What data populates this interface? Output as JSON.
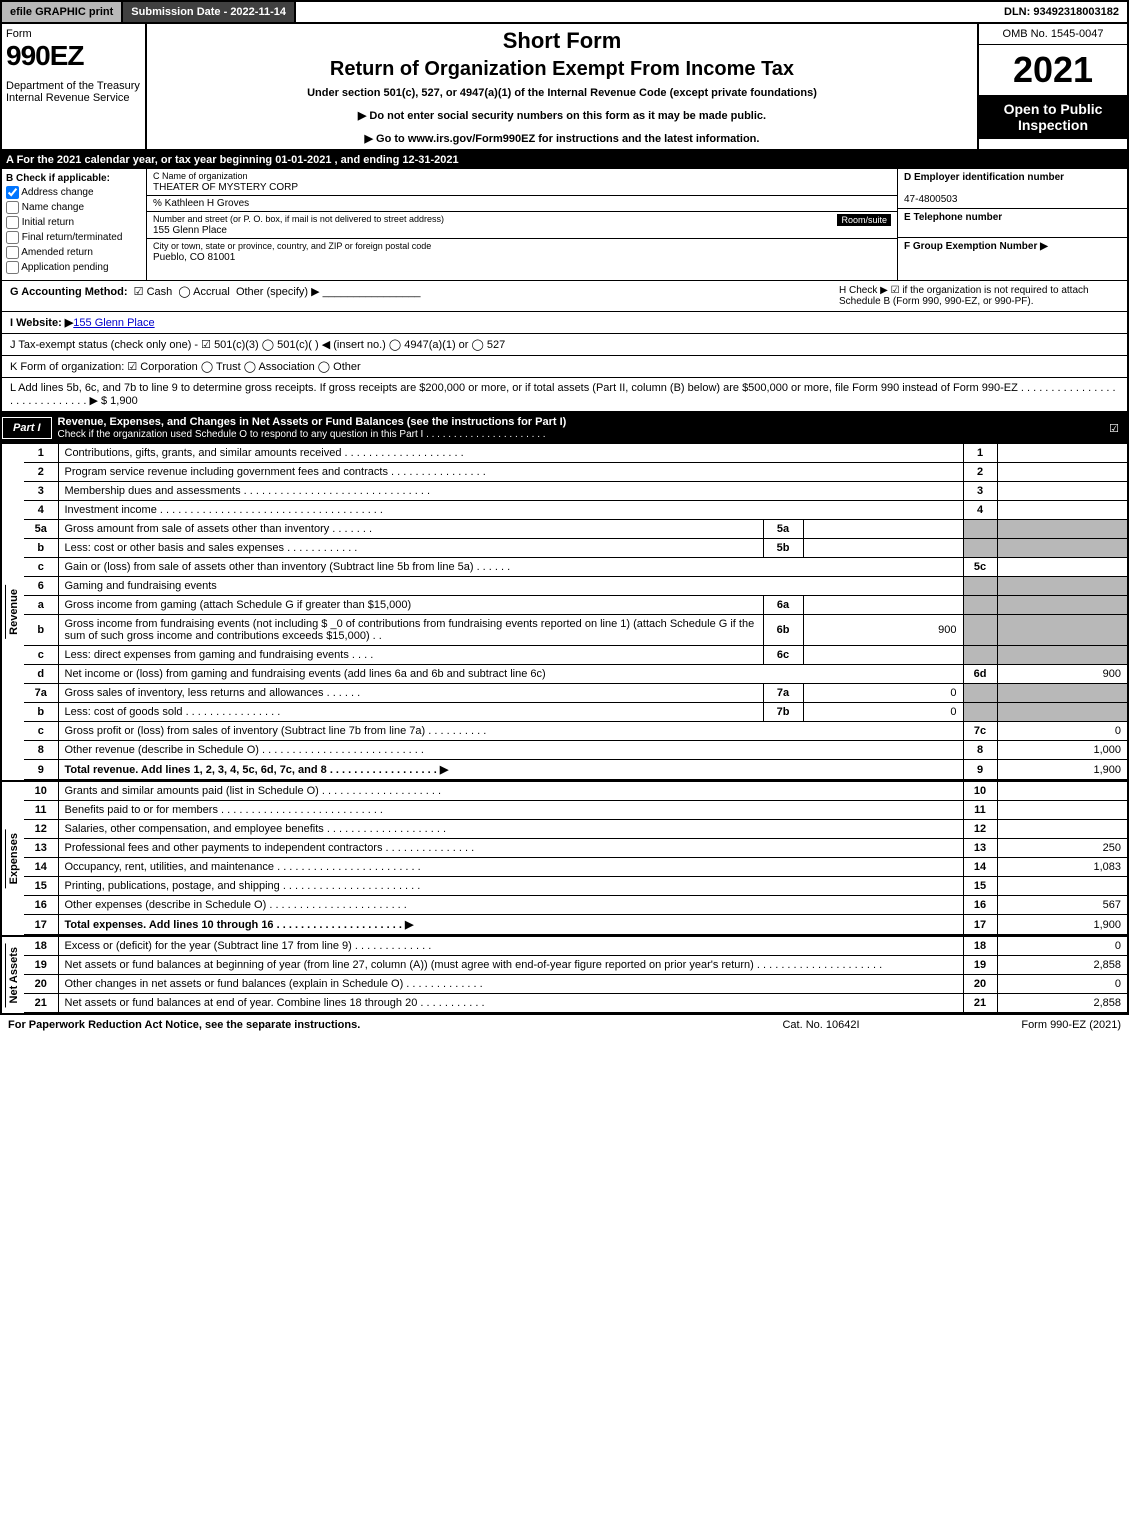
{
  "top_bar": {
    "efile": "efile GRAPHIC print",
    "submission": "Submission Date - 2022-11-14",
    "dln": "DLN: 93492318003182"
  },
  "header": {
    "form_label": "Form",
    "form_number": "990EZ",
    "dept": "Department of the Treasury\nInternal Revenue Service",
    "title1": "Short Form",
    "title2": "Return of Organization Exempt From Income Tax",
    "subtitle": "Under section 501(c), 527, or 4947(a)(1) of the Internal Revenue Code (except private foundations)",
    "note1": "▶ Do not enter social security numbers on this form as it may be made public.",
    "note2": "▶ Go to www.irs.gov/Form990EZ for instructions and the latest information.",
    "omb": "OMB No. 1545-0047",
    "year": "2021",
    "open": "Open to Public Inspection"
  },
  "row_a": "A  For the 2021 calendar year, or tax year beginning 01-01-2021 , and ending 12-31-2021",
  "section_b": {
    "header": "B  Check if applicable:",
    "items": [
      {
        "label": "Address change",
        "checked": true
      },
      {
        "label": "Name change",
        "checked": false
      },
      {
        "label": "Initial return",
        "checked": false
      },
      {
        "label": "Final return/terminated",
        "checked": false
      },
      {
        "label": "Amended return",
        "checked": false
      },
      {
        "label": "Application pending",
        "checked": false
      }
    ]
  },
  "section_c": {
    "c_label": "C Name of organization",
    "org_name": "THEATER OF MYSTERY CORP",
    "care_of": "% Kathleen H Groves",
    "addr_label": "Number and street (or P. O. box, if mail is not delivered to street address)",
    "room_label": "Room/suite",
    "address": "155 Glenn Place",
    "city_label": "City or town, state or province, country, and ZIP or foreign postal code",
    "city": "Pueblo, CO  81001"
  },
  "section_d": {
    "d_label": "D Employer identification number",
    "ein": "47-4800503",
    "e_label": "E Telephone number",
    "f_label": "F Group Exemption Number   ▶"
  },
  "line_g": {
    "g_label": "G Accounting Method:",
    "cash": "Cash",
    "accrual": "Accrual",
    "other": "Other (specify) ▶",
    "h_text": "H  Check ▶ ☑ if the organization is not required to attach Schedule B (Form 990, 990-EZ, or 990-PF)."
  },
  "line_i": {
    "label": "I Website: ▶",
    "value": "155 Glenn Place"
  },
  "line_j": "J Tax-exempt status (check only one) - ☑ 501(c)(3)  ◯ 501(c)(  ) ◀ (insert no.)  ◯ 4947(a)(1) or  ◯ 527",
  "line_k": "K Form of organization:  ☑ Corporation  ◯ Trust  ◯ Association  ◯ Other",
  "line_l": {
    "text": "L Add lines 5b, 6c, and 7b to line 9 to determine gross receipts. If gross receipts are $200,000 or more, or if total assets (Part II, column (B) below) are $500,000 or more, file Form 990 instead of Form 990-EZ . . . . . . . . . . . . . . . . . . . . . . . . . . . . .  ▶",
    "amount": "$ 1,900"
  },
  "part1": {
    "label": "Part I",
    "title": "Revenue, Expenses, and Changes in Net Assets or Fund Balances (see the instructions for Part I)",
    "check_text": "Check if the organization used Schedule O to respond to any question in this Part I . . . . . . . . . . . . . . . . . . . . . ."
  },
  "revenue_label": "Revenue",
  "expenses_label": "Expenses",
  "netassets_label": "Net Assets",
  "lines": {
    "l1": {
      "num": "1",
      "desc": "Contributions, gifts, grants, and similar amounts received . . . . . . . . . . . . . . . . . . . .",
      "rnum": "1",
      "rval": ""
    },
    "l2": {
      "num": "2",
      "desc": "Program service revenue including government fees and contracts . . . . . . . . . . . . . . . .",
      "rnum": "2",
      "rval": ""
    },
    "l3": {
      "num": "3",
      "desc": "Membership dues and assessments . . . . . . . . . . . . . . . . . . . . . . . . . . . . . . .",
      "rnum": "3",
      "rval": ""
    },
    "l4": {
      "num": "4",
      "desc": "Investment income . . . . . . . . . . . . . . . . . . . . . . . . . . . . . . . . . . . . .",
      "rnum": "4",
      "rval": ""
    },
    "l5a": {
      "num": "5a",
      "desc": "Gross amount from sale of assets other than inventory . . . . . . .",
      "snum": "5a",
      "sval": ""
    },
    "l5b": {
      "num": "b",
      "desc": "Less: cost or other basis and sales expenses . . . . . . . . . . . .",
      "snum": "5b",
      "sval": ""
    },
    "l5c": {
      "num": "c",
      "desc": "Gain or (loss) from sale of assets other than inventory (Subtract line 5b from line 5a) . . . . . .",
      "rnum": "5c",
      "rval": ""
    },
    "l6": {
      "num": "6",
      "desc": "Gaming and fundraising events"
    },
    "l6a": {
      "num": "a",
      "desc": "Gross income from gaming (attach Schedule G if greater than $15,000)",
      "snum": "6a",
      "sval": ""
    },
    "l6b": {
      "num": "b",
      "desc": "Gross income from fundraising events (not including $ _0   of contributions from fundraising events reported on line 1) (attach Schedule G if the sum of such gross income and contributions exceeds $15,000)  . .",
      "snum": "6b",
      "sval": "900"
    },
    "l6c": {
      "num": "c",
      "desc": "Less: direct expenses from gaming and fundraising events  . . . .",
      "snum": "6c",
      "sval": ""
    },
    "l6d": {
      "num": "d",
      "desc": "Net income or (loss) from gaming and fundraising events (add lines 6a and 6b and subtract line 6c)",
      "rnum": "6d",
      "rval": "900"
    },
    "l7a": {
      "num": "7a",
      "desc": "Gross sales of inventory, less returns and allowances . . . . . .",
      "snum": "7a",
      "sval": "0"
    },
    "l7b": {
      "num": "b",
      "desc": "Less: cost of goods sold    . . . . . . . . . . . . . . . .",
      "snum": "7b",
      "sval": "0"
    },
    "l7c": {
      "num": "c",
      "desc": "Gross profit or (loss) from sales of inventory (Subtract line 7b from line 7a) . . . . . . . . . .",
      "rnum": "7c",
      "rval": "0"
    },
    "l8": {
      "num": "8",
      "desc": "Other revenue (describe in Schedule O) . . . . . . . . . . . . . . . . . . . . . . . . . . .",
      "rnum": "8",
      "rval": "1,000"
    },
    "l9": {
      "num": "9",
      "desc": "Total revenue. Add lines 1, 2, 3, 4, 5c, 6d, 7c, and 8  . . . . . . . . . . . . . . . . . .  ▶",
      "rnum": "9",
      "rval": "1,900"
    },
    "l10": {
      "num": "10",
      "desc": "Grants and similar amounts paid (list in Schedule O) . . . . . . . . . . . . . . . . . . . .",
      "rnum": "10",
      "rval": ""
    },
    "l11": {
      "num": "11",
      "desc": "Benefits paid to or for members   . . . . . . . . . . . . . . . . . . . . . . . . . . .",
      "rnum": "11",
      "rval": ""
    },
    "l12": {
      "num": "12",
      "desc": "Salaries, other compensation, and employee benefits . . . . . . . . . . . . . . . . . . . .",
      "rnum": "12",
      "rval": ""
    },
    "l13": {
      "num": "13",
      "desc": "Professional fees and other payments to independent contractors . . . . . . . . . . . . . . .",
      "rnum": "13",
      "rval": "250"
    },
    "l14": {
      "num": "14",
      "desc": "Occupancy, rent, utilities, and maintenance . . . . . . . . . . . . . . . . . . . . . . . .",
      "rnum": "14",
      "rval": "1,083"
    },
    "l15": {
      "num": "15",
      "desc": "Printing, publications, postage, and shipping . . . . . . . . . . . . . . . . . . . . . . .",
      "rnum": "15",
      "rval": ""
    },
    "l16": {
      "num": "16",
      "desc": "Other expenses (describe in Schedule O)   . . . . . . . . . . . . . . . . . . . . . . .",
      "rnum": "16",
      "rval": "567"
    },
    "l17": {
      "num": "17",
      "desc": "Total expenses. Add lines 10 through 16   . . . . . . . . . . . . . . . . . . . . .  ▶",
      "rnum": "17",
      "rval": "1,900"
    },
    "l18": {
      "num": "18",
      "desc": "Excess or (deficit) for the year (Subtract line 17 from line 9)    . . . . . . . . . . . . .",
      "rnum": "18",
      "rval": "0"
    },
    "l19": {
      "num": "19",
      "desc": "Net assets or fund balances at beginning of year (from line 27, column (A)) (must agree with end-of-year figure reported on prior year's return) . . . . . . . . . . . . . . . . . . . . .",
      "rnum": "19",
      "rval": "2,858"
    },
    "l20": {
      "num": "20",
      "desc": "Other changes in net assets or fund balances (explain in Schedule O) . . . . . . . . . . . . .",
      "rnum": "20",
      "rval": "0"
    },
    "l21": {
      "num": "21",
      "desc": "Net assets or fund balances at end of year. Combine lines 18 through 20 . . . . . . . . . . .",
      "rnum": "21",
      "rval": "2,858"
    }
  },
  "footer": {
    "left": "For Paperwork Reduction Act Notice, see the separate instructions.",
    "center": "Cat. No. 10642I",
    "right": "Form 990-EZ (2021)"
  },
  "colors": {
    "black": "#000000",
    "gray_btn": "#b8b8b8",
    "dark_btn": "#404040",
    "link": "#0000cc"
  }
}
